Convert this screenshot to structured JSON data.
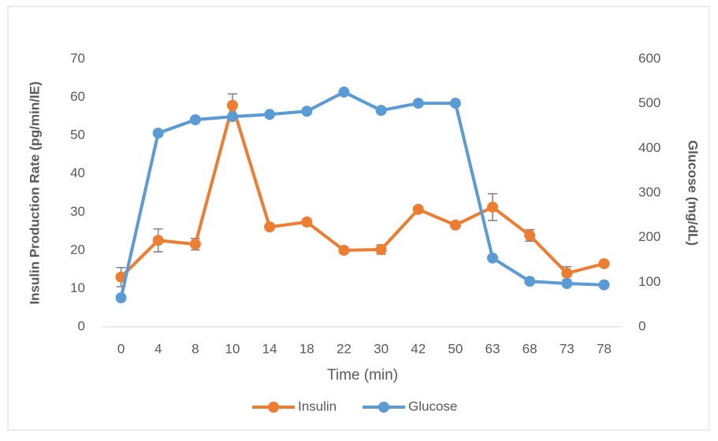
{
  "chart_data": {
    "type": "line",
    "categories": [
      "0",
      "4",
      "8",
      "10",
      "14",
      "18",
      "22",
      "30",
      "42",
      "50",
      "63",
      "68",
      "73",
      "78"
    ],
    "x_label": "Time (min)",
    "y_label": "Insulin Production Rate (pg/min/IE)",
    "y2_label": "Glucose (mg/dL)",
    "series": [
      {
        "name": "Insulin",
        "color": "#ed7d31",
        "values": [
          13.0,
          22.6,
          21.6,
          57.9,
          26.1,
          27.4,
          20.0,
          20.2,
          30.7,
          26.6,
          31.3,
          23.9,
          14.0,
          16.5
        ],
        "errors": [
          2.5,
          3.0,
          1.5,
          3.0,
          0.7,
          0.7,
          0.7,
          1.2,
          0.7,
          0.7,
          3.5,
          1.5,
          1.7,
          0.7
        ]
      },
      {
        "name": "Glucose",
        "color": "#5b9bd5",
        "axis": "y2",
        "values": [
          65,
          434,
          464,
          471,
          476,
          483,
          526,
          485,
          501,
          501,
          154,
          102,
          97,
          94
        ]
      }
    ],
    "ylim": [
      0,
      70
    ],
    "yticks": [
      0,
      10,
      20,
      30,
      40,
      50,
      60,
      70
    ],
    "y2lim": [
      0,
      600
    ],
    "y2ticks": [
      0,
      100,
      200,
      300,
      400,
      500,
      600
    ],
    "grid": false,
    "legend": "bottom"
  }
}
